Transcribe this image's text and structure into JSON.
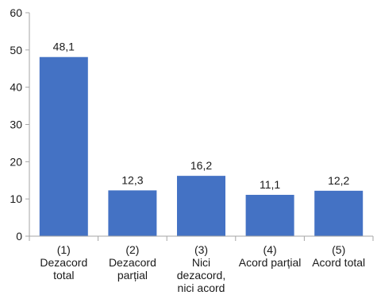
{
  "chart_data": {
    "type": "bar",
    "categories": [
      [
        "(1)",
        "Dezacord",
        "total"
      ],
      [
        "(2)",
        "Dezacord",
        "parțial"
      ],
      [
        "(3)",
        "Nici",
        "dezacord,",
        "nici acord"
      ],
      [
        "(4)",
        "Acord parțial"
      ],
      [
        "(5)",
        "Acord total"
      ]
    ],
    "values": [
      48.1,
      12.3,
      16.2,
      11.1,
      12.2
    ],
    "data_labels": [
      "48,1",
      "12,3",
      "16,2",
      "11,1",
      "12,2"
    ],
    "ylim": [
      0,
      60
    ],
    "y_ticks": [
      0,
      10,
      20,
      30,
      40,
      50,
      60
    ],
    "title": "",
    "xlabel": "",
    "ylabel": "",
    "grid": false,
    "bar_color": "#4472C4",
    "axis_color": "#A6A6A6"
  }
}
